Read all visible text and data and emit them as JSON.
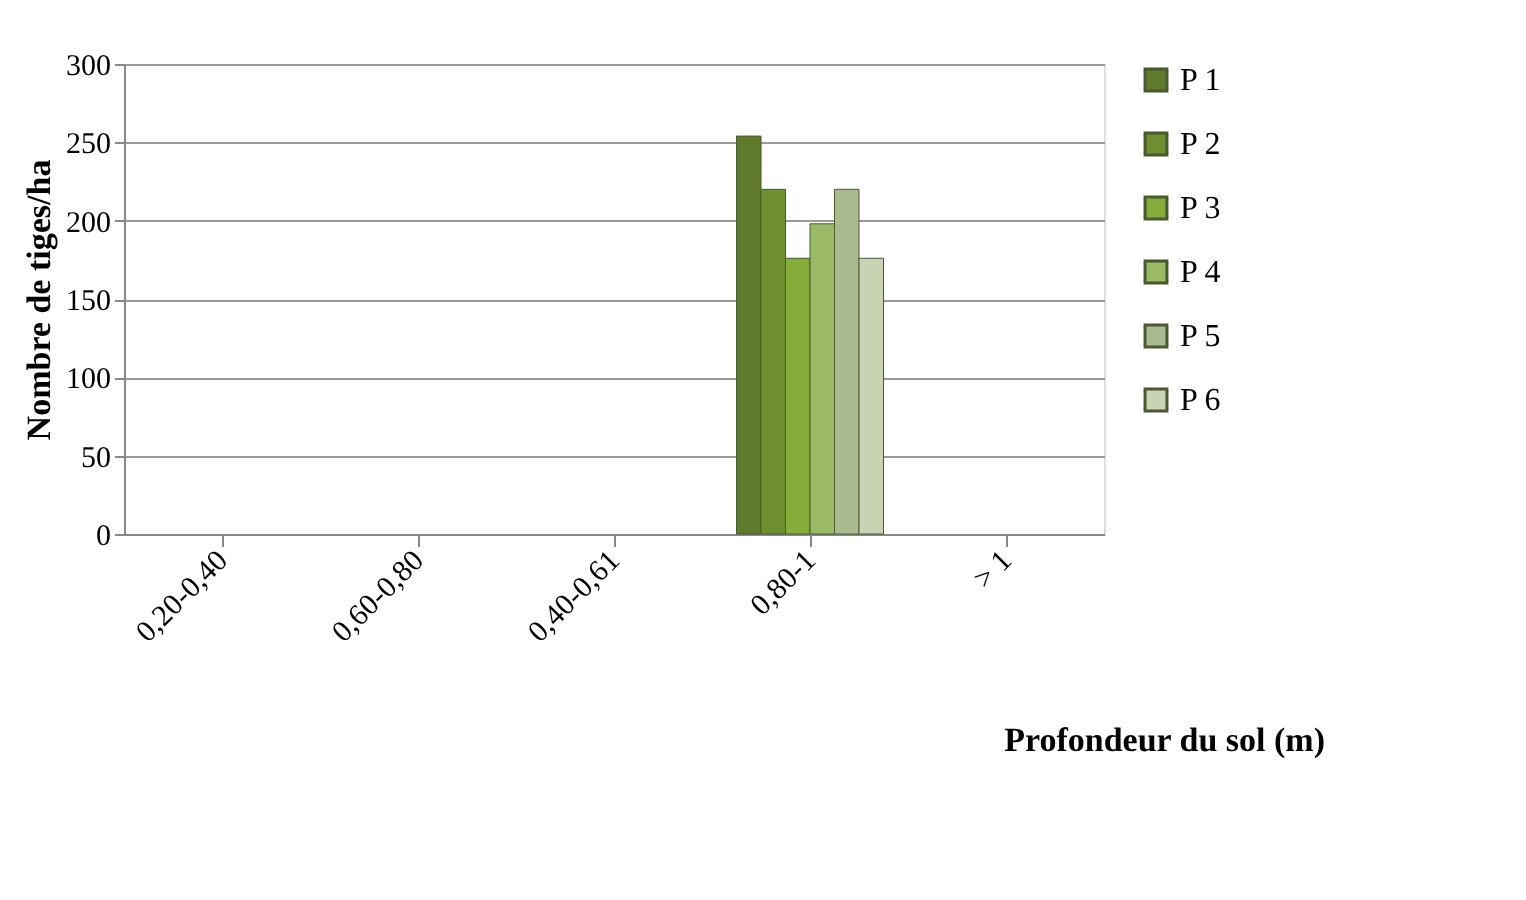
{
  "chart_data": {
    "type": "bar",
    "xlabel": "Profondeur du sol (m)",
    "ylabel": "Nombre de tiges/ha",
    "categories": [
      "0,20-0,40",
      "0,60-0,80",
      "0,40-0,61",
      "0,80-1",
      "> 1"
    ],
    "series": [
      {
        "name": "P 1",
        "color": "#5f7a2a",
        "values": [
          null,
          null,
          null,
          254,
          null
        ]
      },
      {
        "name": "P 2",
        "color": "#6e8f2f",
        "values": [
          null,
          null,
          null,
          220,
          null
        ]
      },
      {
        "name": "P 3",
        "color": "#85ad3a",
        "values": [
          null,
          null,
          null,
          176,
          null
        ]
      },
      {
        "name": "P 4",
        "color": "#9aba66",
        "values": [
          null,
          null,
          null,
          198,
          null
        ]
      },
      {
        "name": "P 5",
        "color": "#a9bb8e",
        "values": [
          null,
          null,
          null,
          220,
          null
        ]
      },
      {
        "name": "P 6",
        "color": "#c8d3b3",
        "values": [
          null,
          null,
          null,
          176,
          null
        ]
      }
    ],
    "ylim": [
      0,
      300
    ],
    "yticks": [
      0,
      50,
      100,
      150,
      200,
      250,
      300
    ],
    "grid": "y",
    "legend": "right"
  }
}
